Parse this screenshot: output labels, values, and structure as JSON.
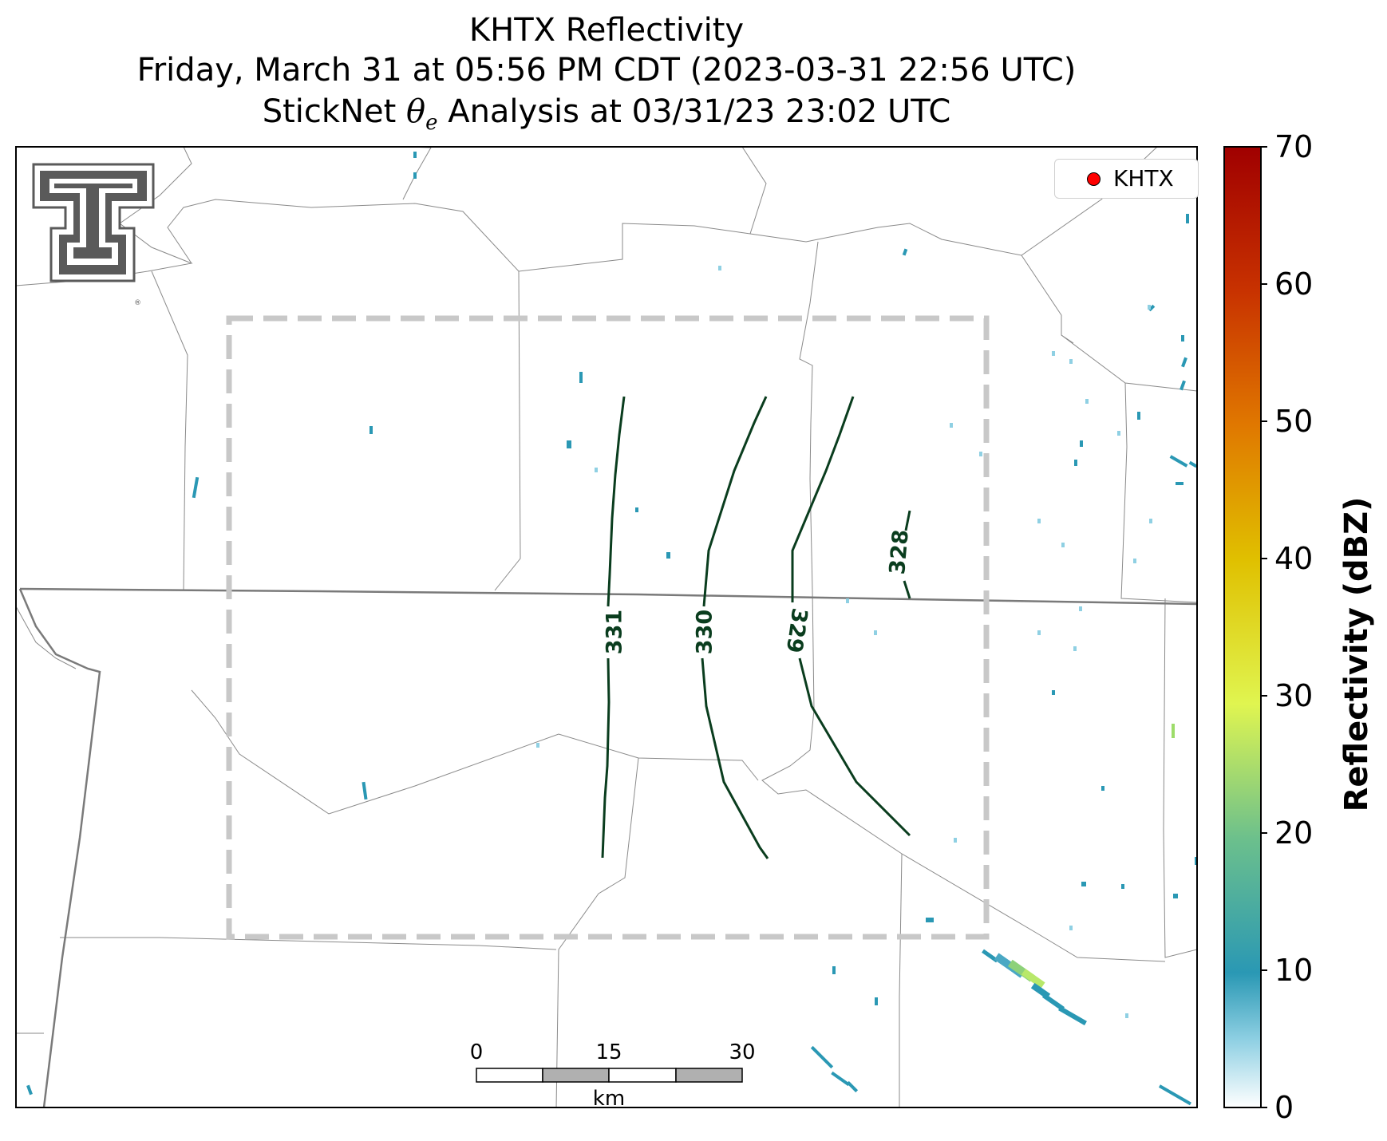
{
  "title": {
    "line1": "KHTX Reflectivity",
    "line2": "Friday, March 31 at 05:56 PM CDT (2023-03-31 22:56 UTC)",
    "line3": "StickNet θe Analysis at 03/31/23 23:02 UTC"
  },
  "legend": {
    "label": "KHTX",
    "marker_color": "#ff0000"
  },
  "colorbar": {
    "label": "Reflectivity (dBZ)",
    "ticks": [
      "0",
      "10",
      "20",
      "30",
      "40",
      "50",
      "60",
      "70"
    ],
    "range": [
      0,
      70
    ],
    "colors": [
      "#ffffff",
      "#2a98b4",
      "#6cc08c",
      "#e0f550",
      "#e0c000",
      "#e07800",
      "#c83200",
      "#a00000"
    ]
  },
  "scale_bar": {
    "ticks": [
      "0",
      "15",
      "30"
    ],
    "unit": "km"
  },
  "contours": {
    "color": "#0a3d1e",
    "labels": [
      "331",
      "330",
      "329",
      "328"
    ]
  },
  "logo": {
    "name": "Texas Tech Double T"
  },
  "analysis_box": {
    "style": "dashed",
    "color": "#c8c8c8"
  }
}
